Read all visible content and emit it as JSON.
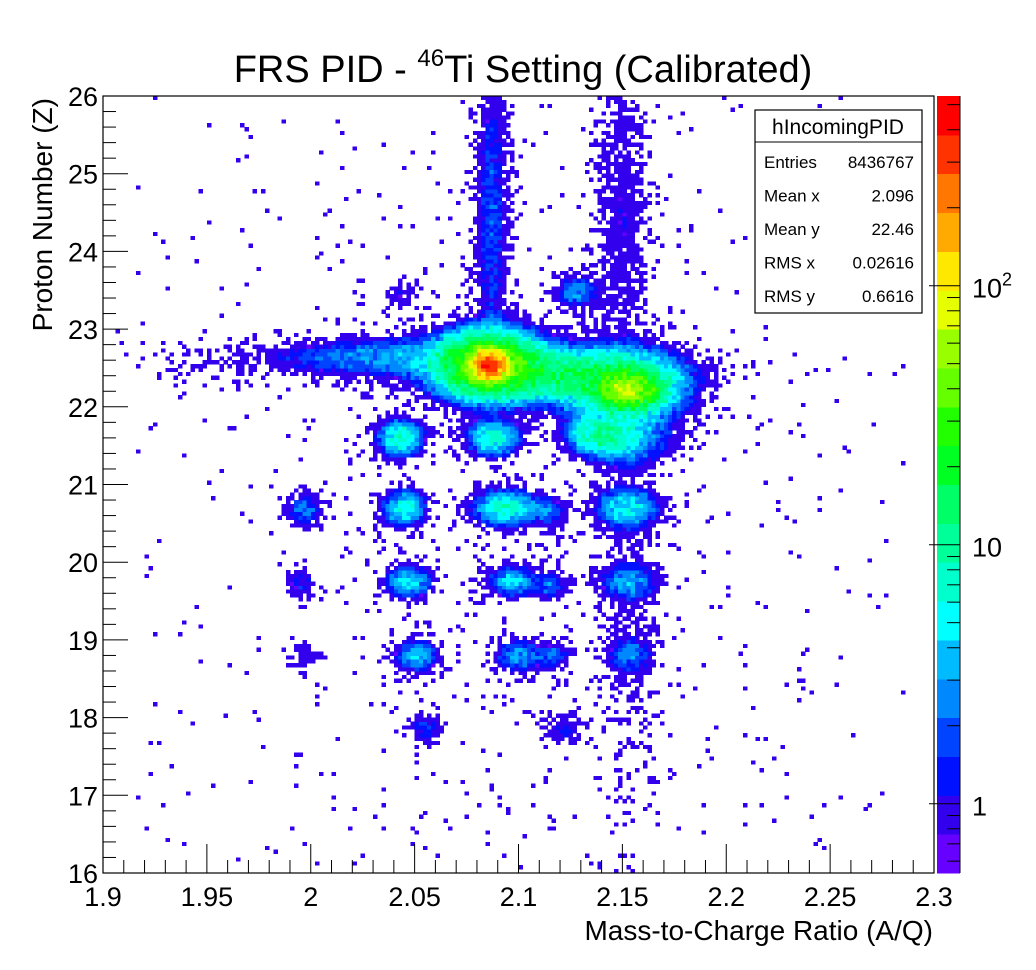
{
  "chart_data": {
    "type": "heatmap",
    "title": {
      "prefix": "FRS PID - ",
      "superscript": "46",
      "suffix": "Ti Setting (Calibrated)"
    },
    "xlabel": "Mass-to-Charge Ratio (A/Q)",
    "ylabel": "Proton Number (Z)",
    "xlim": [
      1.9,
      2.3
    ],
    "ylim": [
      16,
      26
    ],
    "x_ticks": [
      1.9,
      1.95,
      2.0,
      2.05,
      2.1,
      2.15,
      2.2,
      2.25,
      2.3
    ],
    "x_tick_labels": [
      "1.9",
      "1.95",
      "2",
      "2.05",
      "2.1",
      "2.15",
      "2.2",
      "2.25",
      "2.3"
    ],
    "y_ticks": [
      16,
      17,
      18,
      19,
      20,
      21,
      22,
      23,
      24,
      25,
      26
    ],
    "y_tick_labels": [
      "16",
      "17",
      "18",
      "19",
      "20",
      "21",
      "22",
      "23",
      "24",
      "25",
      "26"
    ],
    "z_scale": "log",
    "zlim": [
      0.54,
      540
    ],
    "z_ticks": [
      1,
      10,
      100
    ],
    "z_tick_labels": [
      {
        "base": "1",
        "exp": ""
      },
      {
        "base": "10",
        "exp": ""
      },
      {
        "base": "10",
        "exp": "2"
      }
    ],
    "palette": [
      "#6600ff",
      "#3300ee",
      "#0011ff",
      "#0044ff",
      "#0088ff",
      "#00bbff",
      "#00ffff",
      "#00ffcc",
      "#00ff99",
      "#00ff66",
      "#00ff22",
      "#22ff00",
      "#66ff00",
      "#99ff00",
      "#e6ff00",
      "#ffe800",
      "#ffaa00",
      "#ff7700",
      "#ff3300",
      "#ff0000"
    ],
    "bin_size": {
      "x": 0.002,
      "y": 0.05
    },
    "clusters_note": "estimated peaks: [A/Q, Z, peak counts, sigma A/Q, sigma Z]",
    "clusters": [
      [
        2.086,
        22.54,
        350,
        0.0045,
        0.1
      ],
      [
        2.086,
        22.55,
        40,
        0.013,
        0.22
      ],
      [
        2.118,
        22.42,
        12,
        0.028,
        0.18
      ],
      [
        2.153,
        22.22,
        50,
        0.008,
        0.13
      ],
      [
        2.15,
        22.25,
        12,
        0.016,
        0.25
      ],
      [
        2.05,
        22.65,
        3,
        0.035,
        0.15
      ],
      [
        1.99,
        22.6,
        0.5,
        0.04,
        0.15
      ],
      [
        2.139,
        21.63,
        10,
        0.008,
        0.13
      ],
      [
        2.043,
        21.6,
        8,
        0.006,
        0.13
      ],
      [
        2.088,
        21.6,
        7,
        0.007,
        0.13
      ],
      [
        2.152,
        21.6,
        4,
        0.012,
        0.2
      ],
      [
        1.997,
        20.67,
        2.5,
        0.005,
        0.12
      ],
      [
        2.045,
        20.7,
        6,
        0.006,
        0.13
      ],
      [
        2.094,
        20.7,
        7,
        0.009,
        0.13
      ],
      [
        2.115,
        20.65,
        2,
        0.005,
        0.12
      ],
      [
        2.152,
        20.7,
        5,
        0.009,
        0.14
      ],
      [
        1.995,
        19.75,
        1.5,
        0.005,
        0.12
      ],
      [
        2.047,
        19.75,
        5,
        0.006,
        0.12
      ],
      [
        2.097,
        19.75,
        4,
        0.007,
        0.12
      ],
      [
        2.116,
        19.7,
        2.5,
        0.004,
        0.1
      ],
      [
        2.153,
        19.75,
        3,
        0.008,
        0.13
      ],
      [
        1.996,
        18.8,
        1,
        0.005,
        0.12
      ],
      [
        2.051,
        18.8,
        4,
        0.006,
        0.12
      ],
      [
        2.1,
        18.8,
        3,
        0.007,
        0.12
      ],
      [
        2.117,
        18.8,
        2,
        0.005,
        0.1
      ],
      [
        2.154,
        18.8,
        2,
        0.007,
        0.13
      ],
      [
        2.055,
        17.87,
        1.5,
        0.005,
        0.12
      ],
      [
        2.122,
        17.85,
        1.2,
        0.006,
        0.12
      ],
      [
        2.128,
        23.48,
        3,
        0.006,
        0.12
      ],
      [
        2.043,
        23.45,
        1,
        0.005,
        0.1
      ],
      [
        2.087,
        24.5,
        1.8,
        0.005,
        1.2
      ],
      [
        2.15,
        24.5,
        1,
        0.008,
        1.3
      ],
      [
        2.153,
        19.5,
        0.6,
        0.008,
        1.5
      ],
      [
        2.09,
        21.0,
        0.08,
        0.05,
        2.5
      ],
      [
        2.1,
        22.5,
        0.12,
        0.06,
        0.6
      ]
    ],
    "background_level": 0.01
  },
  "stats": {
    "name": "hIncomingPID",
    "rows": [
      {
        "label": "Entries",
        "value": "8436767"
      },
      {
        "label": "Mean x",
        "value": "2.096"
      },
      {
        "label": "Mean y",
        "value": "22.46"
      },
      {
        "label": "RMS x",
        "value": "0.02616"
      },
      {
        "label": "RMS y",
        "value": "0.6616"
      }
    ]
  }
}
